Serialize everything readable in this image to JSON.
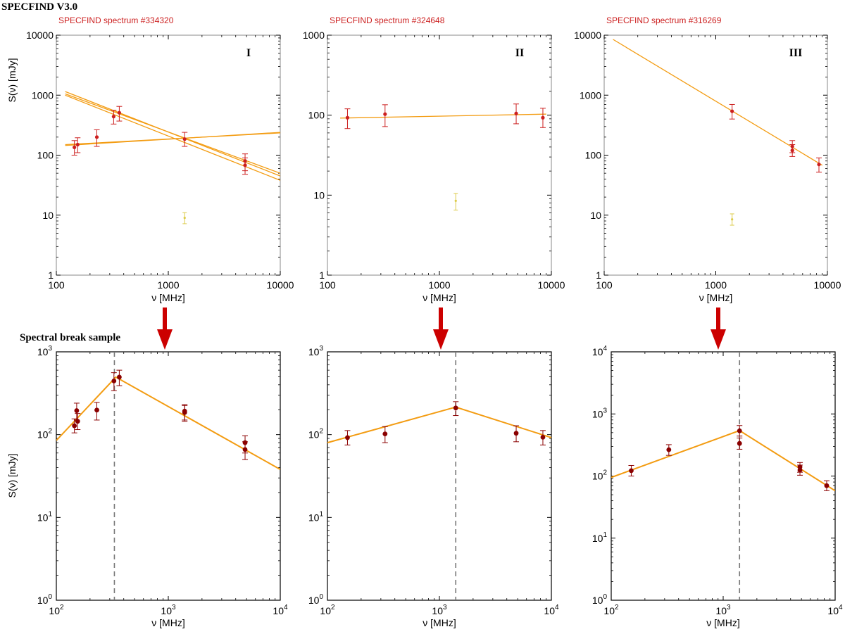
{
  "header": {
    "title": "SPECFIND V3.0",
    "section_label": "Spectral break sample"
  },
  "colors": {
    "fit_line": "#f39c12",
    "point": "#cc1f1f",
    "point_dark": "#8b0000",
    "outlier": "#dccb4a",
    "arrow": "#cc0000",
    "break_line": "#777777"
  },
  "chart_data": [
    {
      "id": "top1",
      "type": "scatter",
      "title": "SPECFIND spectrum #334320",
      "roman": "I",
      "xlabel": "ν [MHz]",
      "ylabel": "S(ν) [mJy]",
      "xscale": "log",
      "yscale": "log",
      "xlim": [
        100,
        10000
      ],
      "ylim": [
        1,
        10000
      ],
      "xticks": [
        100,
        1000,
        10000
      ],
      "xtick_labels": [
        "100",
        "1000",
        "10000"
      ],
      "yticks": [
        1,
        10,
        100,
        1000,
        10000
      ],
      "ytick_labels": [
        "1",
        "10",
        "100",
        "1000",
        "10000"
      ],
      "points": [
        {
          "x": 145,
          "y": 135,
          "lo": 100,
          "hi": 175
        },
        {
          "x": 155,
          "y": 150,
          "lo": 110,
          "hi": 195
        },
        {
          "x": 230,
          "y": 200,
          "lo": 140,
          "hi": 265
        },
        {
          "x": 325,
          "y": 440,
          "lo": 330,
          "hi": 560
        },
        {
          "x": 365,
          "y": 510,
          "lo": 370,
          "hi": 650
        },
        {
          "x": 1400,
          "y": 185,
          "lo": 140,
          "hi": 240
        },
        {
          "x": 4850,
          "y": 80,
          "lo": 55,
          "hi": 105
        },
        {
          "x": 4850,
          "y": 68,
          "lo": 48,
          "hi": 90
        }
      ],
      "outliers": [
        {
          "x": 1400,
          "y": 9,
          "lo": 7.2,
          "hi": 11
        }
      ],
      "fit_lines": [
        {
          "x": [
            120,
            10000
          ],
          "y": [
            145,
            240
          ]
        },
        {
          "x": [
            120,
            10000
          ],
          "y": [
            150,
            235
          ]
        },
        {
          "x": [
            120,
            10000
          ],
          "y": [
            1150,
            45
          ]
        },
        {
          "x": [
            120,
            10000
          ],
          "y": [
            1050,
            50
          ]
        },
        {
          "x": [
            120,
            10000
          ],
          "y": [
            1000,
            38
          ]
        }
      ]
    },
    {
      "id": "top2",
      "type": "scatter",
      "title": "SPECFIND spectrum #324648",
      "roman": "II",
      "xlabel": "ν [MHz]",
      "ylabel": "",
      "xscale": "log",
      "yscale": "log",
      "xlim": [
        100,
        10000
      ],
      "ylim": [
        1,
        1000
      ],
      "xticks": [
        100,
        1000,
        10000
      ],
      "xtick_labels": [
        "100",
        "1000",
        "10000"
      ],
      "yticks": [
        1,
        10,
        100,
        1000
      ],
      "ytick_labels": [
        "1",
        "10",
        "100",
        "1000"
      ],
      "points": [
        {
          "x": 151,
          "y": 93,
          "lo": 68,
          "hi": 120
        },
        {
          "x": 327,
          "y": 103,
          "lo": 72,
          "hi": 135
        },
        {
          "x": 4850,
          "y": 105,
          "lo": 78,
          "hi": 138
        },
        {
          "x": 8400,
          "y": 93,
          "lo": 70,
          "hi": 122
        }
      ],
      "outliers": [
        {
          "x": 1400,
          "y": 8.5,
          "lo": 6.5,
          "hi": 10.5
        }
      ],
      "fit_lines": [
        {
          "x": [
            130,
            9000
          ],
          "y": [
            92,
            103
          ]
        }
      ]
    },
    {
      "id": "top3",
      "type": "scatter",
      "title": "SPECFIND spectrum #316269",
      "roman": "III",
      "xlabel": "ν [MHz]",
      "ylabel": "",
      "xscale": "log",
      "yscale": "log",
      "xlim": [
        100,
        10000
      ],
      "ylim": [
        1,
        10000
      ],
      "xticks": [
        100,
        1000,
        10000
      ],
      "xtick_labels": [
        "100",
        "1000",
        "10000"
      ],
      "yticks": [
        1,
        10,
        100,
        1000,
        10000
      ],
      "ytick_labels": [
        "1",
        "10",
        "100",
        "1000",
        "10000"
      ],
      "points": [
        {
          "x": 1400,
          "y": 540,
          "lo": 400,
          "hi": 700
        },
        {
          "x": 4850,
          "y": 140,
          "lo": 110,
          "hi": 175
        },
        {
          "x": 4850,
          "y": 120,
          "lo": 95,
          "hi": 150
        },
        {
          "x": 8400,
          "y": 70,
          "lo": 52,
          "hi": 90
        }
      ],
      "outliers": [
        {
          "x": 1400,
          "y": 8.5,
          "lo": 6.8,
          "hi": 10.5
        }
      ],
      "fit_lines": [
        {
          "x": [
            120,
            9000
          ],
          "y": [
            8500,
            68
          ]
        }
      ]
    },
    {
      "id": "bot1",
      "type": "scatter",
      "title": "",
      "roman": "",
      "xlabel": "ν [MHz]",
      "ylabel": "S(ν) [mJy]",
      "xscale": "log",
      "yscale": "log",
      "xlim": [
        100,
        10000
      ],
      "ylim": [
        1,
        1000
      ],
      "xticks": [
        100,
        1000,
        10000
      ],
      "xtick_base": [
        "10",
        "10",
        "10"
      ],
      "xtick_exp": [
        "2",
        "3",
        "4"
      ],
      "yticks": [
        1,
        10,
        100,
        1000
      ],
      "ytick_base": [
        "10",
        "10",
        "10",
        "10"
      ],
      "ytick_exp": [
        "0",
        "1",
        "2",
        "3"
      ],
      "points": [
        {
          "x": 145,
          "y": 128,
          "lo": 105,
          "hi": 155
        },
        {
          "x": 152,
          "y": 195,
          "lo": 150,
          "hi": 240
        },
        {
          "x": 155,
          "y": 145,
          "lo": 115,
          "hi": 180
        },
        {
          "x": 230,
          "y": 198,
          "lo": 150,
          "hi": 245
        },
        {
          "x": 327,
          "y": 445,
          "lo": 340,
          "hi": 560
        },
        {
          "x": 365,
          "y": 495,
          "lo": 390,
          "hi": 600
        },
        {
          "x": 1400,
          "y": 192,
          "lo": 150,
          "hi": 230
        },
        {
          "x": 1400,
          "y": 185,
          "lo": 145,
          "hi": 225
        },
        {
          "x": 4850,
          "y": 80,
          "lo": 60,
          "hi": 97
        },
        {
          "x": 4850,
          "y": 66,
          "lo": 50,
          "hi": 82
        }
      ],
      "outliers": [],
      "fit_lines": [
        {
          "x": [
            100,
            340,
            10000
          ],
          "y": [
            85,
            495,
            38
          ]
        }
      ],
      "break_x": 330
    },
    {
      "id": "bot2",
      "type": "scatter",
      "title": "",
      "roman": "",
      "xlabel": "ν [MHz]",
      "ylabel": "",
      "xscale": "log",
      "yscale": "log",
      "xlim": [
        100,
        10000
      ],
      "ylim": [
        1,
        1000
      ],
      "xticks": [
        100,
        1000,
        10000
      ],
      "xtick_base": [
        "10",
        "10",
        "10"
      ],
      "xtick_exp": [
        "2",
        "3",
        "4"
      ],
      "yticks": [
        1,
        10,
        100,
        1000
      ],
      "ytick_base": [
        "10",
        "10",
        "10",
        "10"
      ],
      "ytick_exp": [
        "0",
        "1",
        "2",
        "3"
      ],
      "points": [
        {
          "x": 151,
          "y": 92,
          "lo": 75,
          "hi": 112
        },
        {
          "x": 327,
          "y": 102,
          "lo": 80,
          "hi": 125
        },
        {
          "x": 1400,
          "y": 210,
          "lo": 170,
          "hi": 250
        },
        {
          "x": 4850,
          "y": 104,
          "lo": 82,
          "hi": 128
        },
        {
          "x": 8400,
          "y": 93,
          "lo": 75,
          "hi": 112
        }
      ],
      "outliers": [],
      "fit_lines": [
        {
          "x": [
            100,
            1400,
            10000
          ],
          "y": [
            80,
            215,
            92
          ]
        }
      ],
      "break_x": 1400
    },
    {
      "id": "bot3",
      "type": "scatter",
      "title": "",
      "roman": "",
      "xlabel": "ν [MHz]",
      "ylabel": "",
      "xscale": "log",
      "yscale": "log",
      "xlim": [
        100,
        10000
      ],
      "ylim": [
        1,
        10000
      ],
      "xticks": [
        100,
        1000,
        10000
      ],
      "xtick_base": [
        "10",
        "10",
        "10"
      ],
      "xtick_exp": [
        "2",
        "3",
        "4"
      ],
      "yticks": [
        1,
        10,
        100,
        1000,
        10000
      ],
      "ytick_base": [
        "10",
        "10",
        "10",
        "10",
        "10"
      ],
      "ytick_exp": [
        "0",
        "1",
        "2",
        "3",
        "4"
      ],
      "points": [
        {
          "x": 151,
          "y": 122,
          "lo": 100,
          "hi": 148
        },
        {
          "x": 327,
          "y": 265,
          "lo": 215,
          "hi": 320
        },
        {
          "x": 1400,
          "y": 535,
          "lo": 440,
          "hi": 650
        },
        {
          "x": 1400,
          "y": 335,
          "lo": 270,
          "hi": 410
        },
        {
          "x": 4850,
          "y": 140,
          "lo": 115,
          "hi": 165
        },
        {
          "x": 4850,
          "y": 125,
          "lo": 103,
          "hi": 150
        },
        {
          "x": 8400,
          "y": 70,
          "lo": 58,
          "hi": 84
        }
      ],
      "outliers": [],
      "fit_lines": [
        {
          "x": [
            100,
            1400,
            10000
          ],
          "y": [
            95,
            540,
            58
          ]
        }
      ],
      "break_x": 1400
    }
  ]
}
